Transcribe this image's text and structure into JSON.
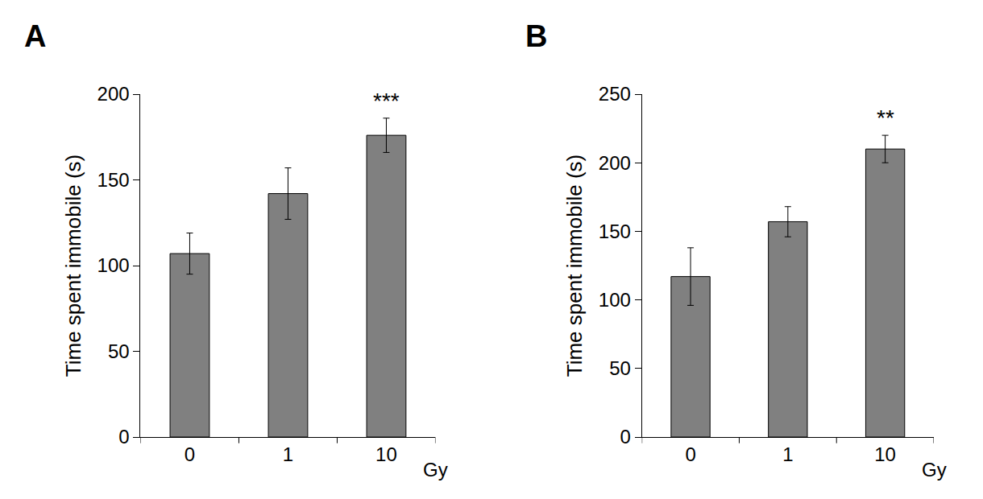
{
  "chart_data": [
    {
      "type": "bar",
      "title": "A",
      "y_label": "Time spent immobile (s)",
      "x_label": "Gy",
      "categories": [
        "0",
        "1",
        "10"
      ],
      "values": [
        107,
        142,
        176
      ],
      "errors": [
        12,
        15,
        10
      ],
      "color": "#808080",
      "ylim": [
        0,
        200
      ],
      "yticks": [
        0,
        50,
        100,
        150,
        200
      ],
      "grid": false,
      "annotations": [
        {
          "text": "***",
          "x": "10"
        }
      ]
    },
    {
      "type": "bar",
      "title": "B",
      "y_label": "Time spent immobile (s)",
      "x_label": "Gy",
      "categories": [
        "0",
        "1",
        "10"
      ],
      "values": [
        117,
        157,
        210
      ],
      "errors": [
        21,
        11,
        10
      ],
      "color": "#808080",
      "ylim": [
        0,
        250
      ],
      "yticks": [
        0,
        50,
        100,
        150,
        200,
        250
      ],
      "grid": false,
      "annotations": [
        {
          "text": "**",
          "x": "10"
        }
      ]
    }
  ]
}
